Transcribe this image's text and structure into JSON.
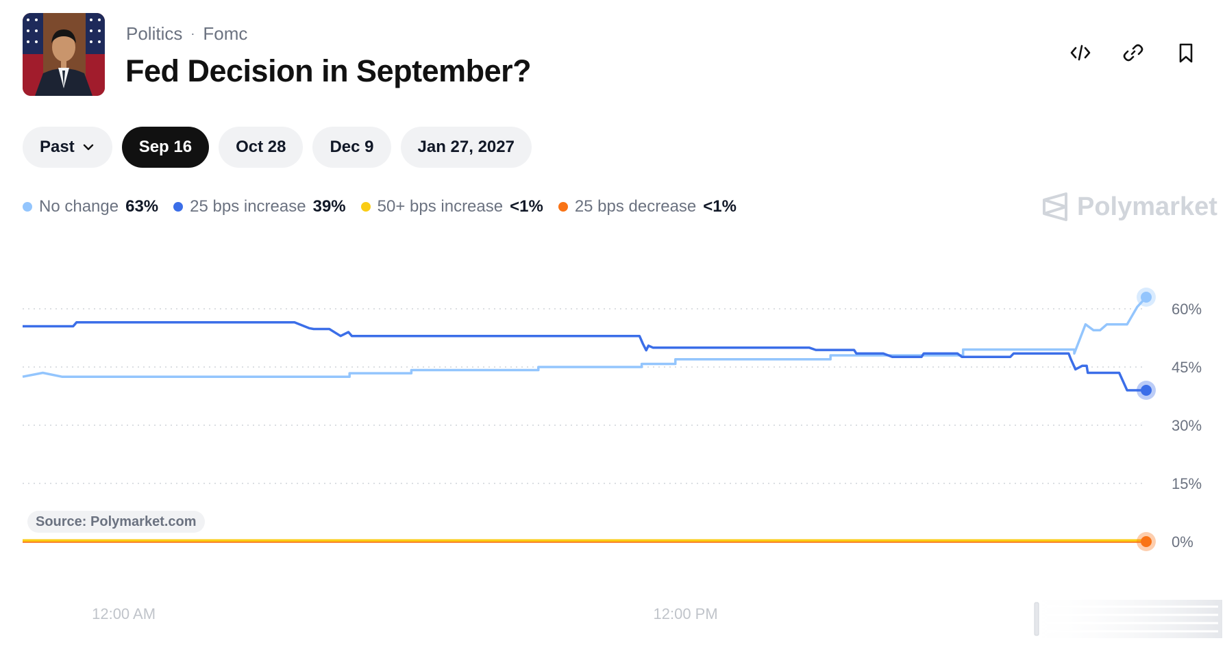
{
  "header": {
    "breadcrumb": [
      "Politics",
      "Fomc"
    ],
    "breadcrumb_separator": "·",
    "title": "Fed Decision in September?"
  },
  "actions": [
    {
      "name": "embed-icon"
    },
    {
      "name": "link-icon"
    },
    {
      "name": "bookmark-icon"
    }
  ],
  "pills": {
    "past_label": "Past",
    "dates": [
      "Sep 16",
      "Oct 28",
      "Dec 9",
      "Jan 27, 2027"
    ],
    "active_index": 0
  },
  "legend": [
    {
      "label": "No change",
      "value": "63%",
      "color": "#93c5fd"
    },
    {
      "label": "25 bps increase",
      "value": "39%",
      "color": "#3b6ee8"
    },
    {
      "label": "50+ bps increase",
      "value": "<1%",
      "color": "#facc15"
    },
    {
      "label": "25 bps decrease",
      "value": "<1%",
      "color": "#f97316"
    }
  ],
  "watermark": {
    "text": "Polymarket"
  },
  "source": {
    "text": "Source: Polymarket.com"
  },
  "chart_data": {
    "type": "line",
    "ylim": [
      0,
      60
    ],
    "yticks": [
      60,
      45,
      30,
      15,
      0
    ],
    "ytick_labels": [
      "60%",
      "45%",
      "30%",
      "15%",
      "0%"
    ],
    "xticks": [
      {
        "x": 0.09,
        "label": "12:00 AM"
      },
      {
        "x": 0.59,
        "label": "12:00 PM"
      }
    ],
    "x_range": [
      0,
      1
    ],
    "grid": true,
    "legend_position": "top-left",
    "series": [
      {
        "name": "No change",
        "color": "#93c5fd",
        "x": [
          0.0,
          0.018,
          0.035,
          0.291,
          0.291,
          0.346,
          0.346,
          0.459,
          0.459,
          0.551,
          0.551,
          0.581,
          0.581,
          0.719,
          0.719,
          0.837,
          0.837,
          0.936,
          0.936,
          0.946,
          0.953,
          0.959,
          0.965,
          0.968,
          0.983,
          0.992,
          1.0
        ],
        "y": [
          42.5,
          43.5,
          42.5,
          42.5,
          43.4,
          43.4,
          44.2,
          44.2,
          45.0,
          45.0,
          45.8,
          45.8,
          47.0,
          47.0,
          48.0,
          48.0,
          49.5,
          49.5,
          48.5,
          56.0,
          54.5,
          54.5,
          56.0,
          56.0,
          56.0,
          60.5,
          63.0
        ]
      },
      {
        "name": "25 bps increase",
        "color": "#3b6ee8",
        "x": [
          0.0,
          0.045,
          0.048,
          0.242,
          0.255,
          0.259,
          0.273,
          0.283,
          0.29,
          0.293,
          0.549,
          0.552,
          0.555,
          0.557,
          0.561,
          0.7,
          0.706,
          0.74,
          0.742,
          0.766,
          0.774,
          0.8,
          0.802,
          0.832,
          0.836,
          0.879,
          0.882,
          0.931,
          0.933,
          0.937,
          0.943,
          0.947,
          0.948,
          0.953,
          0.976,
          0.983,
          1.0
        ],
        "y": [
          55.5,
          55.5,
          56.5,
          56.5,
          55.0,
          54.8,
          54.8,
          53.0,
          54.0,
          53.0,
          53.0,
          51.0,
          49.3,
          50.5,
          50.0,
          50.0,
          49.4,
          49.4,
          48.5,
          48.5,
          47.6,
          47.6,
          48.5,
          48.5,
          47.6,
          47.6,
          48.5,
          48.5,
          47.0,
          44.4,
          45.3,
          45.3,
          43.5,
          43.5,
          43.5,
          39.0,
          39.0
        ]
      },
      {
        "name": "50+ bps increase",
        "color": "#facc15",
        "x": [
          0,
          1
        ],
        "y": [
          0.3,
          0.3
        ]
      },
      {
        "name": "25 bps decrease",
        "color": "#f97316",
        "x": [
          0,
          1
        ],
        "y": [
          0,
          0
        ]
      }
    ],
    "end_markers": [
      "No change",
      "25 bps increase",
      "25 bps decrease"
    ]
  }
}
